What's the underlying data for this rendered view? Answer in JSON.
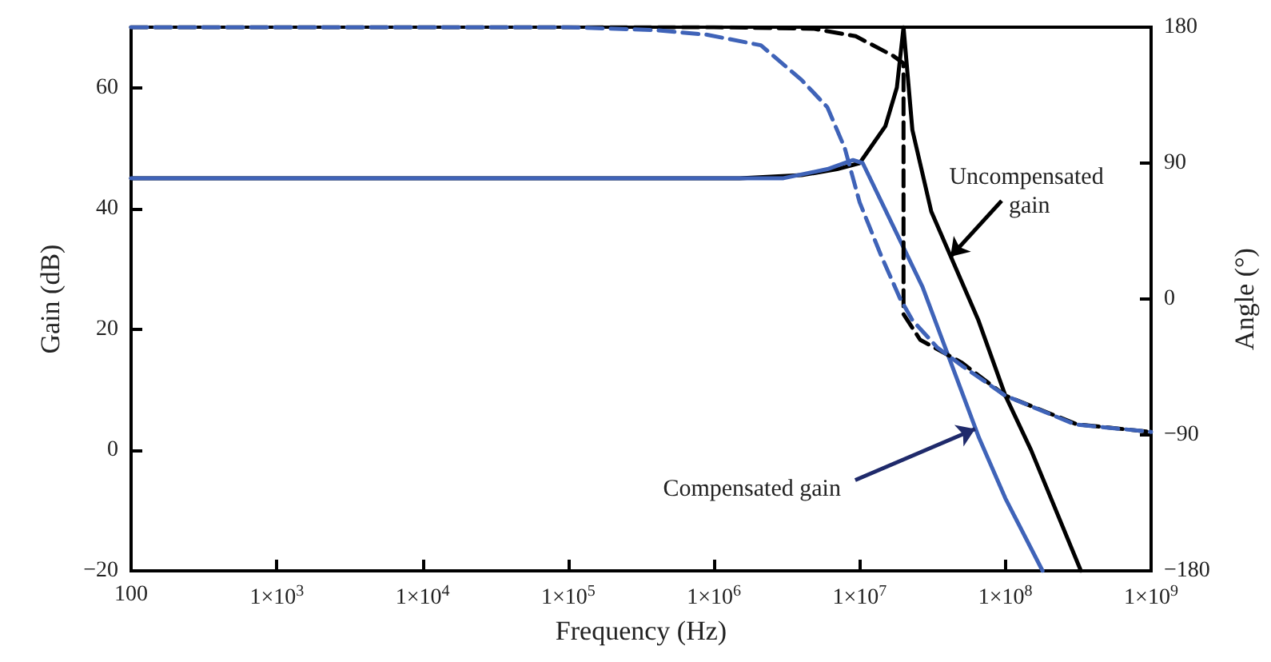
{
  "chart_data": {
    "type": "line",
    "xlabel": "Frequency (Hz)",
    "ylabel": "Gain (dB)",
    "y2label": "Angle (°)",
    "log": "x",
    "grid": false,
    "marker": "none",
    "xlim": [
      100,
      1000000000
    ],
    "xticks": [
      100,
      {
        "value": 1000,
        "label": "1×10$^{3}$"
      },
      {
        "value": 10000,
        "label": "1×10$^{4}$"
      },
      {
        "value": 100000,
        "label": "1×10$^{5}$"
      },
      {
        "value": 1000000,
        "label": "1×10$^{6}$"
      },
      {
        "value": 10000000,
        "label": "1×10$^{7}$"
      },
      {
        "value": 100000000,
        "label": "1×10$^{8}$"
      },
      {
        "value": 1000000000,
        "label": "1×10$^{9}$"
      }
    ],
    "ylim": [
      -20,
      70
    ],
    "yticks": [
      -20,
      0,
      20,
      40,
      60
    ],
    "y2lim": [
      -180,
      180
    ],
    "y2ticks": [
      -180,
      -90,
      0,
      90,
      180
    ],
    "series": [
      {
        "color": "#000000",
        "line_style": "solid",
        "x": [
          100,
          1500000,
          4000000,
          7000000,
          10000000,
          15000000,
          18000000,
          20000000,
          23000000,
          31000000,
          65000000,
          100000000,
          150000000,
          330000000
        ],
        "values": [
          45,
          45,
          45.5,
          46.5,
          47.5,
          53.6,
          60,
          70,
          53,
          39.5,
          21.6,
          9,
          0,
          -20
        ]
      },
      {
        "color": "#3f63b8",
        "line_style": "solid",
        "x": [
          100,
          3000000,
          6000000,
          9000000,
          10500000,
          27000000,
          66000000,
          100000000,
          180000000
        ],
        "values": [
          45,
          45,
          46.5,
          48,
          47.5,
          27,
          2,
          -8,
          -20
        ]
      },
      {
        "color": "#000000",
        "line_style": "dashed",
        "axis": "y2",
        "x": [
          100,
          1000000,
          4800000,
          9400000,
          17000000,
          20000000,
          20000000,
          26000000,
          50000000,
          100000000,
          310000000,
          1000000000
        ],
        "values": [
          180,
          180,
          179,
          174,
          161,
          156,
          -10,
          -27,
          -42,
          -64,
          -83,
          -88
        ]
      },
      {
        "color": "#3f63b8",
        "line_style": "dashed",
        "axis": "y2",
        "x": [
          100,
          100000,
          400000,
          900000,
          2100000,
          4000000,
          6000000,
          7900000,
          10000000,
          14000000,
          19000000,
          23000000,
          34000000,
          50000000,
          100000000,
          300000000,
          1000000000
        ],
        "values": [
          180,
          180,
          178,
          175,
          168,
          145,
          127,
          100,
          64,
          29,
          0,
          -14,
          -32,
          -44,
          -64,
          -83,
          -88
        ]
      }
    ],
    "annotations": [
      {
        "text": "Uncompensated gain",
        "x": 42000000,
        "y": 32
      },
      {
        "text": "Compensated gain",
        "x": 62000000,
        "y": 3.5
      }
    ]
  }
}
